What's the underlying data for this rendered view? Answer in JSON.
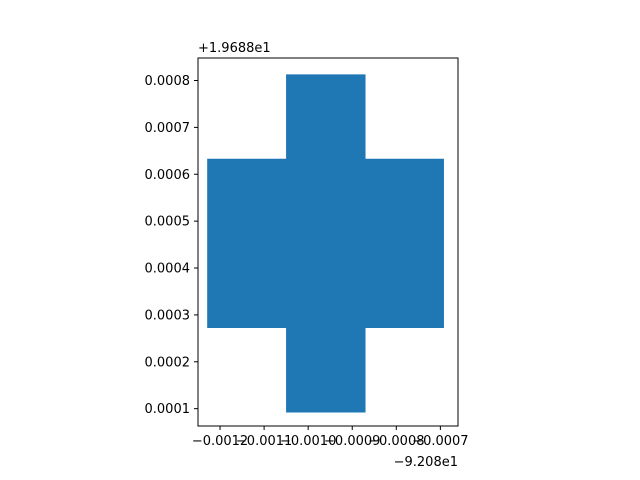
{
  "chart_data": {
    "type": "area",
    "title": "",
    "xlabel": "",
    "ylabel": "",
    "x_offset_text": "−9.208e1",
    "y_offset_text": "+1.9688e1",
    "xlim": [
      -0.00125,
      -0.00066
    ],
    "ylim": [
      6.3e-05,
      0.000848
    ],
    "x_ticks": [
      {
        "value": -0.0012,
        "label": "−0.0012"
      },
      {
        "value": -0.0011,
        "label": "−0.0011"
      },
      {
        "value": -0.001,
        "label": "−0.0010"
      },
      {
        "value": -0.0009,
        "label": "−0.0009"
      },
      {
        "value": -0.0008,
        "label": "−0.0008"
      },
      {
        "value": -0.0007,
        "label": "−0.0007"
      }
    ],
    "y_ticks": [
      {
        "value": 0.0001,
        "label": "0.0001"
      },
      {
        "value": 0.0002,
        "label": "0.0002"
      },
      {
        "value": 0.0003,
        "label": "0.0003"
      },
      {
        "value": 0.0004,
        "label": "0.0004"
      },
      {
        "value": 0.0005,
        "label": "0.0005"
      },
      {
        "value": 0.0006,
        "label": "0.0006"
      },
      {
        "value": 0.0007,
        "label": "0.0007"
      },
      {
        "value": 0.0008,
        "label": "0.0008"
      }
    ],
    "polygon": {
      "fill_color": "#1f77b4",
      "points": [
        [
          -0.001049,
          9.3e-05
        ],
        [
          -0.000871,
          9.3e-05
        ],
        [
          -0.000871,
          0.000273
        ],
        [
          -0.000693,
          0.000273
        ],
        [
          -0.000693,
          0.000632
        ],
        [
          -0.000871,
          0.000632
        ],
        [
          -0.000871,
          0.000812
        ],
        [
          -0.001049,
          0.000812
        ],
        [
          -0.001049,
          0.000632
        ],
        [
          -0.001228,
          0.000632
        ],
        [
          -0.001228,
          0.000273
        ],
        [
          -0.001049,
          0.000273
        ]
      ]
    },
    "grid": false,
    "legend": "none"
  }
}
